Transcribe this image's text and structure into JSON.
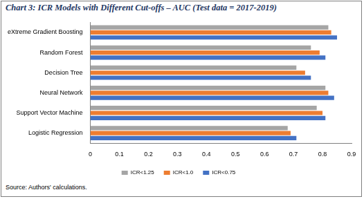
{
  "chart_data": {
    "type": "bar",
    "orientation": "horizontal",
    "title": "Chart 3: ICR Models with Different Cut-offs – AUC (Test data = 2017-2019)",
    "annotations": [
      "Source: Authors' calculations."
    ],
    "categories": [
      "eXtreme Gradient Boosting",
      "Random Forest",
      "Decision Tree",
      "Neural Network",
      "Support Vector Machine",
      "Logistic Regression"
    ],
    "series": [
      {
        "name": "ICR<1.25",
        "color": "#a5a5a5",
        "values": [
          0.82,
          0.76,
          0.71,
          0.81,
          0.78,
          0.68
        ]
      },
      {
        "name": "ICR<1.0",
        "color": "#ed7d31",
        "values": [
          0.83,
          0.79,
          0.74,
          0.82,
          0.8,
          0.69
        ]
      },
      {
        "name": "ICR<0.75",
        "color": "#4472c4",
        "values": [
          0.85,
          0.81,
          0.76,
          0.84,
          0.81,
          0.71
        ]
      }
    ],
    "xlim": [
      0,
      0.9
    ],
    "xticks": [
      0,
      0.1,
      0.2,
      0.3,
      0.4,
      0.5,
      0.6,
      0.7,
      0.8,
      0.9
    ],
    "grid": false,
    "legend": "bottom"
  }
}
